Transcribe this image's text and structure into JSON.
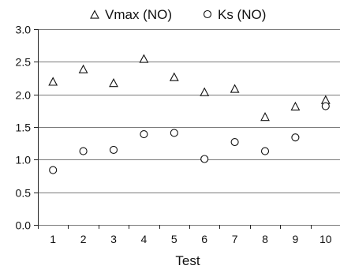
{
  "chart_data": {
    "type": "scatter",
    "title": "",
    "xlabel": "Test",
    "ylabel": "",
    "x": [
      1,
      2,
      3,
      4,
      5,
      6,
      7,
      8,
      9,
      10
    ],
    "xticks": [
      "1",
      "2",
      "3",
      "4",
      "5",
      "6",
      "7",
      "8",
      "9",
      "10"
    ],
    "yticks": [
      "0.0",
      "0.5",
      "1.0",
      "1.5",
      "2.0",
      "2.5",
      "3.0"
    ],
    "xlim": [
      0.5,
      10.5
    ],
    "ylim": [
      0,
      3
    ],
    "grid": "horizontal",
    "legend_position": "top",
    "series": [
      {
        "name": "Vmax (NO)",
        "marker": "triangle",
        "values": [
          2.19,
          2.38,
          2.17,
          2.54,
          2.26,
          2.03,
          2.08,
          1.65,
          1.81,
          1.91
        ]
      },
      {
        "name": "Ks (NO)",
        "marker": "circle",
        "values": [
          0.84,
          1.13,
          1.15,
          1.39,
          1.41,
          1.01,
          1.27,
          1.13,
          1.34,
          1.82
        ]
      }
    ]
  }
}
